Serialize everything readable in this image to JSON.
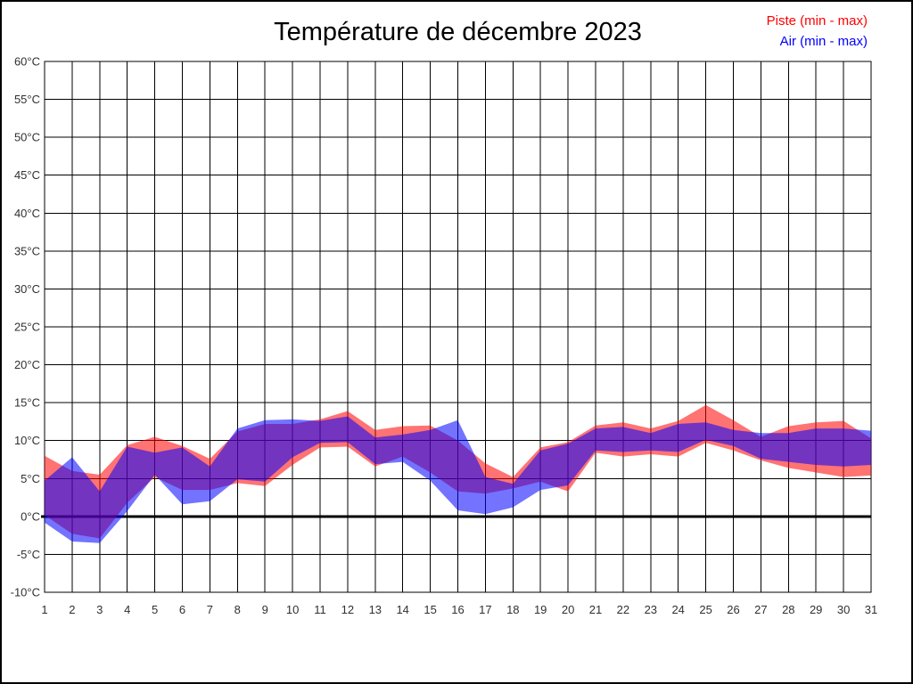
{
  "chart_data": {
    "type": "area",
    "title": "Température de décembre 2023",
    "ylabel": "",
    "xlabel": "",
    "ylim": [
      -10,
      60
    ],
    "ytick_step": 5,
    "grid": true,
    "zero_line": 0,
    "legend_position": "top-right",
    "x": [
      1,
      2,
      3,
      4,
      5,
      6,
      7,
      8,
      9,
      10,
      11,
      12,
      13,
      14,
      15,
      16,
      17,
      18,
      19,
      20,
      21,
      22,
      23,
      24,
      25,
      26,
      27,
      28,
      29,
      30,
      31
    ],
    "x_tick_labels": [
      "1",
      "2",
      "3",
      "4",
      "5",
      "6",
      "7",
      "8",
      "9",
      "10",
      "11",
      "12",
      "13",
      "14",
      "15",
      "16",
      "17",
      "18",
      "19",
      "20",
      "21",
      "22",
      "23",
      "24",
      "25",
      "26",
      "27",
      "28",
      "29",
      "30",
      "31"
    ],
    "y_tick_labels": [
      "60°C",
      "55°C",
      "50°C",
      "45°C",
      "40°C",
      "35°C",
      "30°C",
      "25°C",
      "20°C",
      "15°C",
      "10°C",
      "5°C",
      "0°C",
      "-5°C",
      "-10°C"
    ],
    "series": [
      {
        "name": "Piste (min - max)",
        "color": "#ff0000",
        "fill": "rgba(255,0,0,0.55)",
        "min": [
          0.2,
          -2.3,
          -2.9,
          1.8,
          5.2,
          3.5,
          3.5,
          4.4,
          4.0,
          6.8,
          9.1,
          9.2,
          6.6,
          7.9,
          5.8,
          3.3,
          3.0,
          3.7,
          4.6,
          3.3,
          8.4,
          7.9,
          8.2,
          7.9,
          9.7,
          8.7,
          7.4,
          6.4,
          5.8,
          5.2,
          5.4
        ],
        "max": [
          8.0,
          6.0,
          5.5,
          9.4,
          10.5,
          9.3,
          7.6,
          11.2,
          12.2,
          12.2,
          12.8,
          13.9,
          11.4,
          11.9,
          12.0,
          10.0,
          7.0,
          5.2,
          9.1,
          9.8,
          12.0,
          12.4,
          11.6,
          12.6,
          14.7,
          12.7,
          10.5,
          11.9,
          12.4,
          12.6,
          10.3
        ]
      },
      {
        "name": "Air (min - max)",
        "color": "#0000ff",
        "fill": "rgba(0,0,255,0.55)",
        "min": [
          -0.8,
          -3.3,
          -3.5,
          0.7,
          5.5,
          1.6,
          2.0,
          4.9,
          4.6,
          7.8,
          9.7,
          9.8,
          6.9,
          7.2,
          4.7,
          0.8,
          0.3,
          1.2,
          3.5,
          4.1,
          8.7,
          8.5,
          8.7,
          8.5,
          10.1,
          9.3,
          7.6,
          7.2,
          6.8,
          6.6,
          6.8
        ],
        "max": [
          4.7,
          7.8,
          3.3,
          9.2,
          8.4,
          9.1,
          6.6,
          11.6,
          12.7,
          12.8,
          12.6,
          13.2,
          10.4,
          10.8,
          11.4,
          12.7,
          5.2,
          4.3,
          8.7,
          9.6,
          11.6,
          11.8,
          11.0,
          12.2,
          12.4,
          11.4,
          11.0,
          11.0,
          11.6,
          11.6,
          11.3
        ]
      }
    ]
  }
}
